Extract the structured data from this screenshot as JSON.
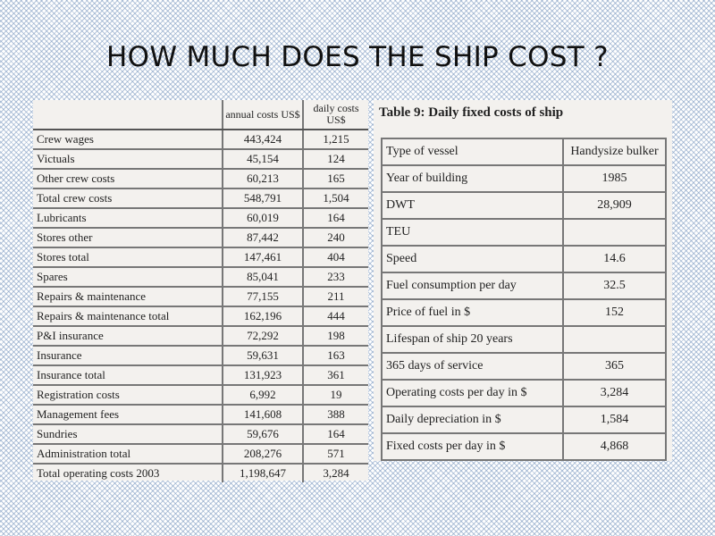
{
  "slide": {
    "title": "HOW MUCH DOES THE SHIP COST ?"
  },
  "cost_table": {
    "header": {
      "annual": "annual costs US$",
      "daily": "daily costs US$"
    },
    "rows": [
      {
        "label": "Crew wages",
        "annual": "443,424",
        "daily": "1,215"
      },
      {
        "label": "Victuals",
        "annual": "45,154",
        "daily": "124"
      },
      {
        "label": "Other crew costs",
        "annual": "60,213",
        "daily": "165"
      },
      {
        "label": "Total crew costs",
        "annual": "548,791",
        "daily": "1,504"
      },
      {
        "label": "Lubricants",
        "annual": "60,019",
        "daily": "164"
      },
      {
        "label": "Stores other",
        "annual": "87,442",
        "daily": "240"
      },
      {
        "label": "Stores total",
        "annual": "147,461",
        "daily": "404"
      },
      {
        "label": "Spares",
        "annual": "85,041",
        "daily": "233"
      },
      {
        "label": "Repairs & maintenance",
        "annual": "77,155",
        "daily": "211"
      },
      {
        "label": "Repairs & maintenance total",
        "annual": "162,196",
        "daily": "444"
      },
      {
        "label": "P&I insurance",
        "annual": "72,292",
        "daily": "198"
      },
      {
        "label": "Insurance",
        "annual": "59,631",
        "daily": "163"
      },
      {
        "label": "Insurance total",
        "annual": "131,923",
        "daily": "361"
      },
      {
        "label": "Registration costs",
        "annual": "6,992",
        "daily": "19"
      },
      {
        "label": "Management fees",
        "annual": "141,608",
        "daily": "388"
      },
      {
        "label": "Sundries",
        "annual": "59,676",
        "daily": "164"
      },
      {
        "label": "Administration total",
        "annual": "208,276",
        "daily": "571"
      },
      {
        "label": "Total operating costs 2003",
        "annual": "1,198,647",
        "daily": "3,284"
      }
    ]
  },
  "fixed_table": {
    "caption": "Table 9: Daily fixed costs of ship",
    "rows": [
      {
        "label": "Type of vessel",
        "value": "Handysize bulker"
      },
      {
        "label": "Year of building",
        "value": "1985"
      },
      {
        "label": "DWT",
        "value": "28,909"
      },
      {
        "label": "TEU",
        "value": ""
      },
      {
        "label": "Speed",
        "value": "14.6"
      },
      {
        "label": "Fuel consumption per day",
        "value": "32.5"
      },
      {
        "label": "Price of fuel in $",
        "value": "152"
      },
      {
        "label": "Lifespan of ship 20 years",
        "value": ""
      },
      {
        "label": "365 days of service",
        "value": "365"
      },
      {
        "label": "Operating costs per day in $",
        "value": "3,284"
      },
      {
        "label": "Daily depreciation in $",
        "value": "1,584"
      },
      {
        "label": "Fixed costs per day in $",
        "value": "4,868"
      }
    ]
  }
}
